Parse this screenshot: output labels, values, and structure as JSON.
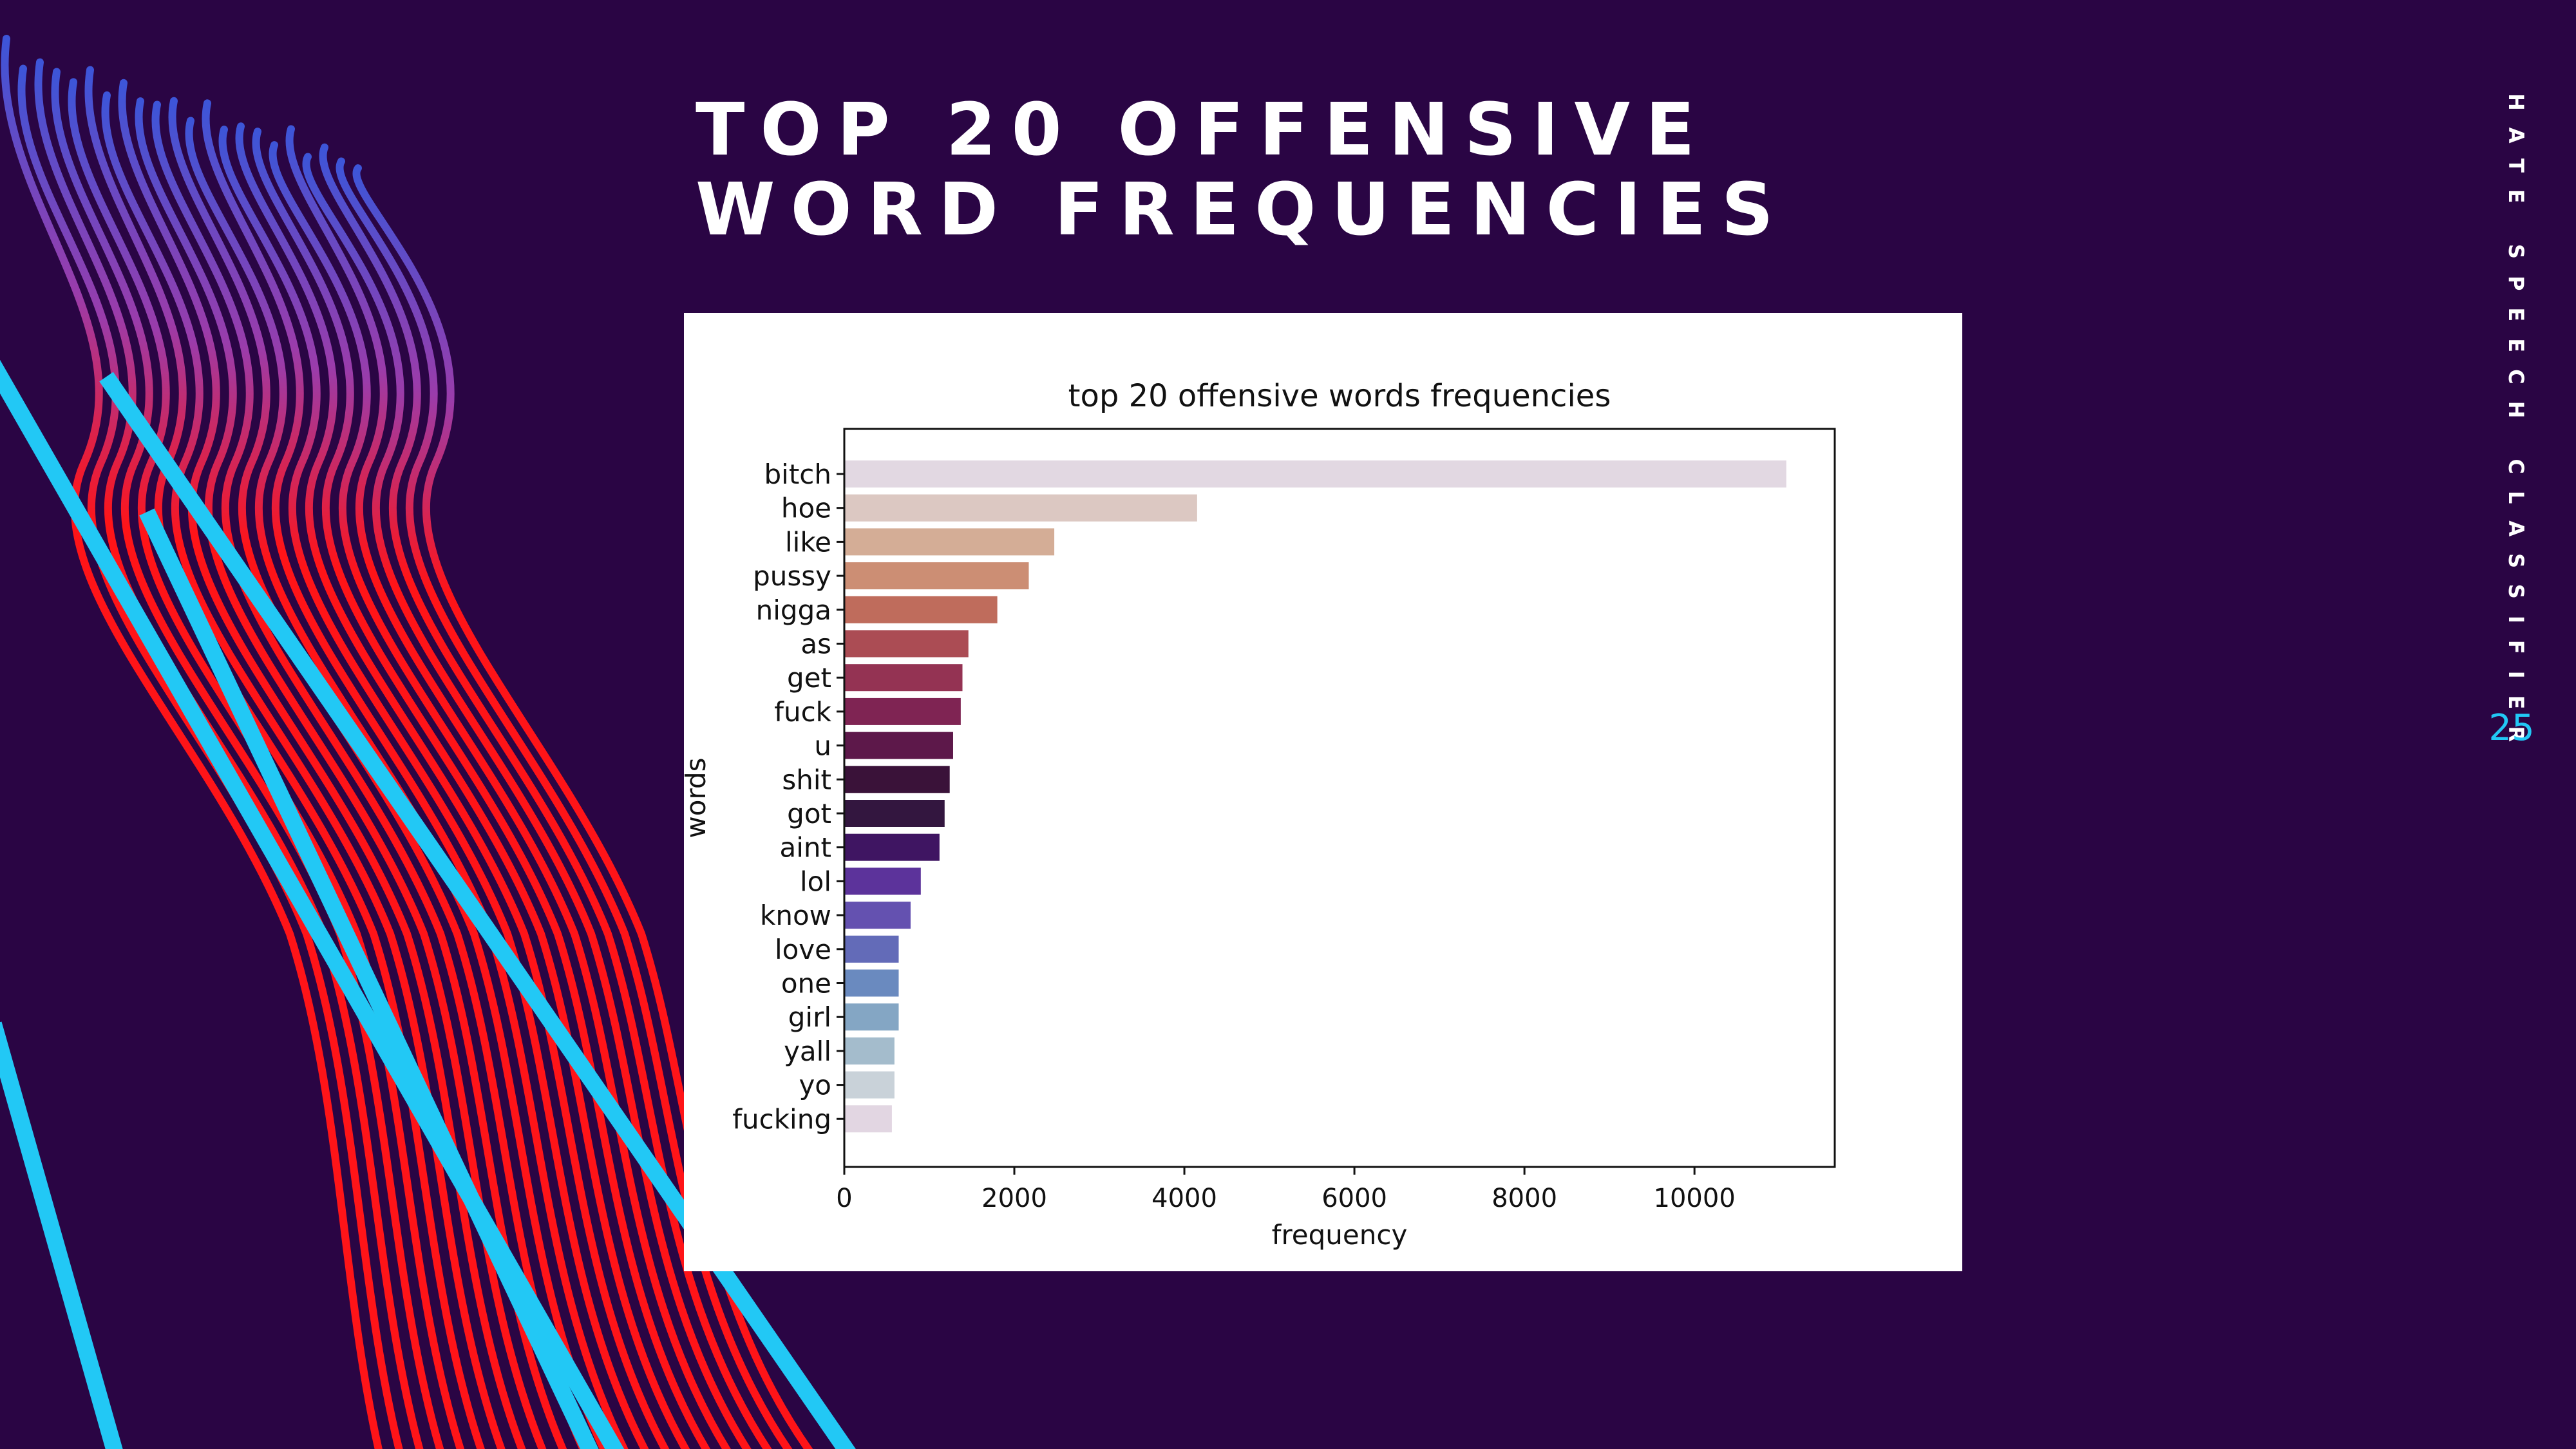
{
  "slide": {
    "title": "TOP 20 OFFENSIVE WORD FREQUENCIES",
    "side_label": "HATE SPEECH CLASSIFIER",
    "page_number": "25",
    "colors": {
      "background": "#2a0544",
      "title": "#ffffff",
      "accent": "#22c8f5",
      "wave_red": "#ff1418"
    }
  },
  "chart_data": {
    "type": "bar",
    "orientation": "horizontal",
    "title": "top 20 offensive words frequencies",
    "xlabel": "frequency",
    "ylabel": "words",
    "xlim": [
      0,
      11650
    ],
    "xticks": [
      0,
      2000,
      4000,
      6000,
      8000,
      10000
    ],
    "grid": false,
    "categories": [
      "bitch",
      "hoe",
      "like",
      "pussy",
      "nigga",
      "as",
      "get",
      "fuck",
      "u",
      "shit",
      "got",
      "aint",
      "lol",
      "know",
      "love",
      "one",
      "girl",
      "yall",
      "yo",
      "fucking"
    ],
    "values": [
      11080,
      4150,
      2470,
      2170,
      1800,
      1460,
      1390,
      1370,
      1280,
      1240,
      1180,
      1120,
      900,
      780,
      640,
      640,
      640,
      590,
      590,
      560
    ],
    "colors": [
      "#e2d8e2",
      "#dcc8c2",
      "#d4ad96",
      "#cc8e74",
      "#bf6c5c",
      "#ab4c54",
      "#943353",
      "#7f2453",
      "#5d184a",
      "#3a1239",
      "#33163f",
      "#3f1562",
      "#5c339b",
      "#6451b0",
      "#636bb8",
      "#6a8abf",
      "#84a6c4",
      "#a4bccc",
      "#c9d2d9",
      "#e2d6e2"
    ]
  }
}
